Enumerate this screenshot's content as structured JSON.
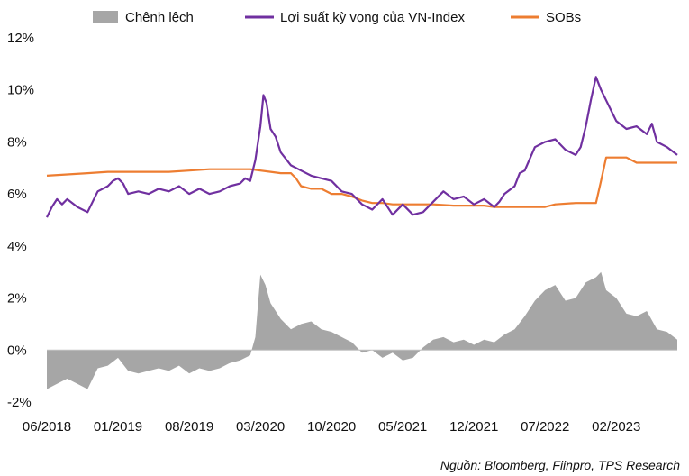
{
  "source": "Nguồn: Bloomberg, Fiinpro, TPS Research",
  "chart_data": {
    "type": "line",
    "title": "",
    "xlabel": "",
    "ylabel": "",
    "ylim": [
      -2,
      12
    ],
    "y_ticks": [
      "-2%",
      "0%",
      "2%",
      "4%",
      "6%",
      "8%",
      "10%",
      "12%"
    ],
    "x_ticks": [
      "06/2018",
      "01/2019",
      "08/2019",
      "03/2020",
      "10/2020",
      "05/2021",
      "12/2021",
      "07/2022",
      "02/2023"
    ],
    "x_tick_index": [
      0,
      7,
      14,
      21,
      28,
      35,
      42,
      49,
      56
    ],
    "x_range": [
      0,
      62
    ],
    "grid": false,
    "legend_position": "top",
    "legend": [
      {
        "name": "Chênh lệch",
        "kind": "area",
        "color": "#a6a6a6"
      },
      {
        "name": "Lợi suất kỳ vọng của VN-Index",
        "kind": "line",
        "color": "#7030a0"
      },
      {
        "name": "SOBs",
        "kind": "line",
        "color": "#ed7d31"
      }
    ],
    "series": [
      {
        "name": "Lợi suất kỳ vọng của VN-Index",
        "color": "#7030a0",
        "x": [
          0,
          0.5,
          1,
          1.5,
          2,
          3,
          4,
          5,
          6,
          6.5,
          7,
          7.5,
          8,
          9,
          10,
          11,
          12,
          13,
          14,
          15,
          16,
          17,
          18,
          19,
          19.5,
          20,
          20.5,
          21,
          21.3,
          21.6,
          22,
          22.5,
          23,
          24,
          25,
          26,
          27,
          28,
          29,
          30,
          31,
          32,
          33,
          34,
          35,
          36,
          37,
          38,
          39,
          40,
          41,
          42,
          43,
          44,
          44.5,
          45,
          46,
          46.5,
          47,
          48,
          49,
          50,
          51,
          52,
          52.5,
          53,
          53.5,
          54,
          54.5,
          55,
          56,
          57,
          58,
          59,
          59.5,
          60,
          61,
          62
        ],
        "values": [
          5.1,
          5.5,
          5.8,
          5.6,
          5.8,
          5.5,
          5.3,
          6.1,
          6.3,
          6.5,
          6.6,
          6.4,
          6.0,
          6.1,
          6.0,
          6.2,
          6.1,
          6.3,
          6.0,
          6.2,
          6.0,
          6.1,
          6.3,
          6.4,
          6.6,
          6.5,
          7.3,
          8.6,
          9.8,
          9.5,
          8.5,
          8.2,
          7.6,
          7.1,
          6.9,
          6.7,
          6.6,
          6.5,
          6.1,
          6.0,
          5.6,
          5.4,
          5.8,
          5.2,
          5.6,
          5.2,
          5.3,
          5.7,
          6.1,
          5.8,
          5.9,
          5.6,
          5.8,
          5.5,
          5.7,
          6.0,
          6.3,
          6.8,
          6.9,
          7.8,
          8.0,
          8.1,
          7.7,
          7.5,
          7.8,
          8.6,
          9.6,
          10.5,
          10.0,
          9.6,
          8.8,
          8.5,
          8.6,
          8.3,
          8.7,
          8.0,
          7.8,
          7.5
        ]
      },
      {
        "name": "SOBs",
        "color": "#ed7d31",
        "x": [
          0,
          2,
          4,
          6,
          8,
          10,
          12,
          14,
          16,
          18,
          20,
          22,
          23,
          24,
          24.5,
          25,
          26,
          27,
          28,
          29,
          30,
          31,
          32,
          33,
          34,
          36,
          38,
          40,
          42,
          43,
          44,
          46,
          48,
          49,
          50,
          52,
          54,
          54.5,
          55,
          56,
          57,
          58,
          60,
          62
        ],
        "values": [
          6.7,
          6.75,
          6.8,
          6.85,
          6.85,
          6.85,
          6.85,
          6.9,
          6.95,
          6.95,
          6.95,
          6.85,
          6.8,
          6.8,
          6.6,
          6.3,
          6.2,
          6.2,
          6.0,
          6.0,
          5.9,
          5.75,
          5.65,
          5.65,
          5.6,
          5.6,
          5.6,
          5.55,
          5.55,
          5.55,
          5.5,
          5.5,
          5.5,
          5.5,
          5.6,
          5.65,
          5.65,
          6.5,
          7.4,
          7.4,
          7.4,
          7.2,
          7.2,
          7.2
        ]
      },
      {
        "name": "Chênh lệch",
        "color": "#a6a6a6",
        "kind": "area",
        "x": [
          0,
          1,
          2,
          3,
          4,
          5,
          6,
          7,
          8,
          9,
          10,
          11,
          12,
          13,
          14,
          15,
          16,
          17,
          18,
          19,
          20,
          20.5,
          21,
          21.5,
          22,
          23,
          24,
          25,
          26,
          27,
          28,
          29,
          30,
          31,
          32,
          33,
          34,
          35,
          36,
          37,
          38,
          39,
          40,
          41,
          42,
          43,
          44,
          45,
          46,
          47,
          48,
          49,
          50,
          51,
          52,
          53,
          54,
          54.5,
          55,
          56,
          57,
          58,
          59,
          60,
          61,
          62
        ],
        "values": [
          -1.5,
          -1.3,
          -1.1,
          -1.3,
          -1.5,
          -0.7,
          -0.6,
          -0.3,
          -0.8,
          -0.9,
          -0.8,
          -0.7,
          -0.8,
          -0.6,
          -0.9,
          -0.7,
          -0.8,
          -0.7,
          -0.5,
          -0.4,
          -0.2,
          0.5,
          2.9,
          2.5,
          1.8,
          1.2,
          0.8,
          1.0,
          1.1,
          0.8,
          0.7,
          0.5,
          0.3,
          -0.1,
          0.0,
          -0.3,
          -0.1,
          -0.4,
          -0.3,
          0.1,
          0.4,
          0.5,
          0.3,
          0.4,
          0.2,
          0.4,
          0.3,
          0.6,
          0.8,
          1.3,
          1.9,
          2.3,
          2.5,
          1.9,
          2.0,
          2.6,
          2.8,
          3.0,
          2.3,
          2.0,
          1.4,
          1.3,
          1.5,
          0.8,
          0.7,
          0.4
        ]
      }
    ]
  }
}
